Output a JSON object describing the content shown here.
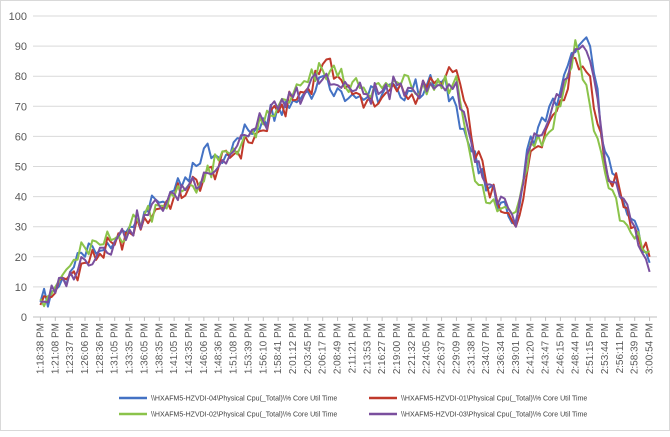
{
  "chart_data": {
    "type": "line",
    "title": "",
    "xlabel": "",
    "ylabel": "",
    "ylim": [
      0,
      100
    ],
    "yticks": [
      0,
      10,
      20,
      30,
      40,
      50,
      60,
      70,
      80,
      90,
      100
    ],
    "grid": "horizontal",
    "legend_position": "bottom",
    "x_tick_labels": [
      "1:18:38 PM",
      "1:21:08 PM",
      "1:23:37 PM",
      "1:26:06 PM",
      "1:28:36 PM",
      "1:31:05 PM",
      "1:33:35 PM",
      "1:36:05 PM",
      "1:38:35 PM",
      "1:41:05 PM",
      "1:43:35 PM",
      "1:46:06 PM",
      "1:48:36 PM",
      "1:51:08 PM",
      "1:53:39 PM",
      "1:56:10 PM",
      "1:58:41 PM",
      "2:01:12 PM",
      "2:03:45 PM",
      "2:06:17 PM",
      "2:08:49 PM",
      "2:11:21 PM",
      "2:13:53 PM",
      "2:16:27 PM",
      "2:19:00 PM",
      "2:21:32 PM",
      "2:24:05 PM",
      "2:26:37 PM",
      "2:29:09 PM",
      "2:31:38 PM",
      "2:34:07 PM",
      "2:36:34 PM",
      "2:39:01 PM",
      "2:41:20 PM",
      "2:43:47 PM",
      "2:46:15 PM",
      "2:48:44 PM",
      "2:51:15 PM",
      "2:53:44 PM",
      "2:56:11 PM",
      "2:58:39 PM",
      "3:00:54 PM"
    ],
    "series": [
      {
        "name": "\\\\HXAFM5-HZVDI-04\\Physical Cpu(_Total)\\% Core Util Time",
        "color": "#4472c4",
        "values": [
          5,
          9,
          15,
          20,
          22,
          25,
          30,
          35,
          38,
          42,
          45,
          56,
          53,
          58,
          62,
          66,
          70,
          72,
          75,
          80,
          76,
          74,
          73,
          74,
          76,
          75,
          77,
          78,
          70,
          55,
          42,
          38,
          32,
          60,
          65,
          75,
          88,
          90,
          55,
          40,
          32,
          18
        ]
      },
      {
        "name": "\\\\HXAFM5-HZVDI-01\\Physical Cpu(_Total)\\% Core Util Time",
        "color": "#c0392b",
        "values": [
          4,
          8,
          14,
          18,
          21,
          24,
          28,
          33,
          36,
          40,
          43,
          46,
          50,
          54,
          58,
          62,
          68,
          72,
          76,
          84,
          80,
          74,
          72,
          73,
          75,
          74,
          76,
          77,
          82,
          60,
          45,
          35,
          30,
          55,
          62,
          72,
          86,
          80,
          50,
          42,
          30,
          20
        ]
      },
      {
        "name": "\\\\HXAFM5-HZVDI-02\\Physical Cpu(_Total)\\% Core Util Time",
        "color": "#8bc34a",
        "values": [
          6,
          10,
          17,
          23,
          24,
          26,
          30,
          34,
          37,
          40,
          44,
          45,
          52,
          56,
          60,
          64,
          70,
          74,
          78,
          82,
          80,
          78,
          74,
          76,
          78,
          76,
          74,
          76,
          80,
          52,
          38,
          36,
          35,
          58,
          60,
          70,
          92,
          70,
          48,
          32,
          26,
          22
        ]
      },
      {
        "name": "\\\\HXAFM5-HZVDI-03\\Physical Cpu(_Total)\\% Core Util Time",
        "color": "#7a4f9e",
        "values": [
          5,
          8,
          15,
          19,
          23,
          25,
          29,
          34,
          37,
          41,
          44,
          48,
          50,
          55,
          60,
          65,
          69,
          73,
          76,
          79,
          77,
          75,
          74,
          75,
          77,
          76,
          75,
          77,
          78,
          58,
          44,
          40,
          30,
          57,
          63,
          73,
          89,
          85,
          52,
          40,
          30,
          15
        ]
      }
    ]
  }
}
